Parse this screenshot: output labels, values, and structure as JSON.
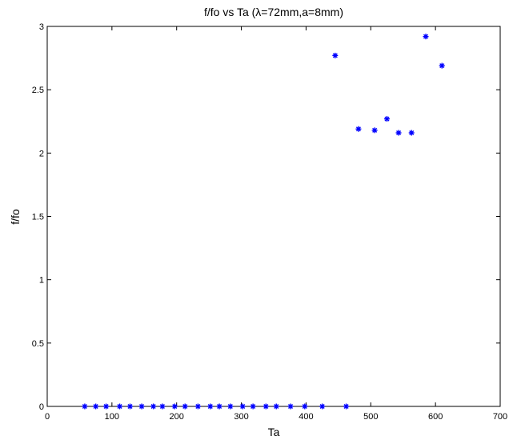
{
  "chart_data": {
    "type": "scatter",
    "title": "f/fo vs Ta (λ=72mm,a=8mm)",
    "xlabel": "Ta",
    "ylabel": "f/fo",
    "xlim": [
      0,
      700
    ],
    "ylim": [
      0,
      3
    ],
    "xticks": [
      0,
      100,
      200,
      300,
      400,
      500,
      600,
      700
    ],
    "yticks": [
      0,
      0.5,
      1,
      1.5,
      2,
      2.5,
      3
    ],
    "xtick_labels": [
      "0",
      "100",
      "200",
      "300",
      "400",
      "500",
      "600",
      "700"
    ],
    "ytick_labels": [
      "0",
      "0.5",
      "1",
      "1.5",
      "2",
      "2.5",
      "3"
    ],
    "marker": "*",
    "marker_color": "#0000ff",
    "grid": false,
    "series": [
      {
        "x": [
          58,
          75,
          91,
          112,
          128,
          146,
          164,
          178,
          197,
          213,
          233,
          252,
          266,
          283,
          302,
          318,
          338,
          354,
          376,
          398,
          425,
          462,
          445,
          481,
          506,
          525,
          543,
          563,
          585,
          610
        ],
        "y": [
          0,
          0,
          0,
          0,
          0,
          0,
          0,
          0,
          0,
          0,
          0,
          0,
          0,
          0,
          0,
          0,
          0,
          0,
          0,
          0,
          0,
          0,
          2.77,
          2.19,
          2.18,
          2.27,
          2.16,
          2.16,
          2.92,
          2.69
        ]
      }
    ]
  }
}
